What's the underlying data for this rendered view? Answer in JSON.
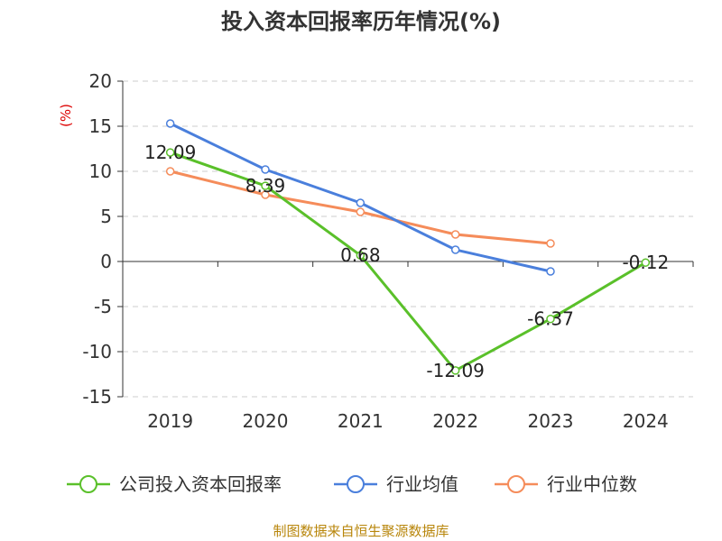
{
  "chart_data": {
    "type": "line",
    "title": "投入资本回报率历年情况(%)",
    "ylabel": "(%)",
    "xlabel": "",
    "categories": [
      "2019",
      "2020",
      "2021",
      "2022",
      "2023",
      "2024"
    ],
    "ylim": [
      -15,
      20
    ],
    "yticks": [
      "20",
      "15",
      "10",
      "5",
      "0",
      "-5",
      "-10",
      "-15"
    ],
    "grid": true,
    "legend_position": "bottom",
    "series": [
      {
        "name": "公司投入资本回报率",
        "color": "#5ac02a",
        "values": [
          12.09,
          8.39,
          0.68,
          -12.09,
          -6.37,
          -0.12
        ],
        "labels": [
          "12.09",
          "8.39",
          "0.68",
          "-12.09",
          "-6.37",
          "-0.12"
        ]
      },
      {
        "name": "行业均值",
        "color": "#4a7fdc",
        "values": [
          15.3,
          10.2,
          6.5,
          1.3,
          -1.1,
          null
        ]
      },
      {
        "name": "行业中位数",
        "color": "#f58c5a",
        "values": [
          10.0,
          7.4,
          5.5,
          3.0,
          2.0,
          null
        ]
      }
    ]
  },
  "source": "制图数据来自恒生聚源数据库"
}
